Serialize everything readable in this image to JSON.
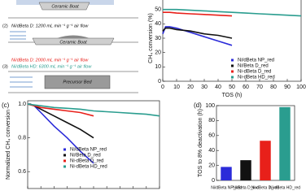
{
  "diagram": {
    "boat_1": "Ceramic Boat",
    "step_2": "(2)",
    "flow_2": "Ni/dBeta D: 1200 mL min⁻¹ g⁻¹ air flow",
    "boat_2": "Ceramic Boat",
    "flow_2b": "Ni/dBeta D: 2000 mL min⁻¹ g⁻¹ air flow",
    "step_3": "(3)",
    "flow_3": "Ni/dBeta HD: 6300 mL min⁻¹ g⁻¹ air flow",
    "bed": "Precursor Bed"
  },
  "chart_data": [
    {
      "type": "line",
      "xlabel": "TOS (h)",
      "ylabel": "CH₄ conversion (%)",
      "xlim": [
        0,
        100
      ],
      "xticks": [
        0,
        10,
        20,
        30,
        40,
        50,
        60,
        70,
        80,
        90,
        100
      ],
      "ylim": [
        0,
        60
      ],
      "yticks": [
        0,
        10,
        20,
        30,
        40,
        50
      ],
      "series": [
        {
          "name": "Ni/dBeta NP_red",
          "color": "#2b2bd9",
          "x": [
            0,
            2,
            5,
            10,
            20,
            30,
            40,
            50
          ],
          "values": [
            33,
            38,
            38,
            37,
            34,
            31,
            28,
            25
          ]
        },
        {
          "name": "Ni/Beta D_red",
          "color": "#111111",
          "x": [
            0,
            2,
            5,
            10,
            20,
            30,
            40,
            50
          ],
          "values": [
            35,
            37,
            37,
            36,
            35,
            33,
            32,
            30
          ]
        },
        {
          "name": "Ni-dBeta D_red",
          "color": "#e8201a",
          "x": [
            0,
            5,
            10,
            20,
            30,
            40,
            50
          ],
          "values": [
            48,
            48,
            47.5,
            47,
            46.5,
            46,
            45.5
          ]
        },
        {
          "name": "Ni-dBeta HD_red",
          "color": "#2a9d8f",
          "x": [
            0,
            10,
            20,
            30,
            40,
            50,
            60,
            70,
            80,
            90,
            100
          ],
          "values": [
            50,
            50,
            49.5,
            49,
            48.5,
            48,
            47.5,
            47,
            46.5,
            46,
            45.5
          ]
        }
      ]
    },
    {
      "type": "line",
      "label": "(c)",
      "ylabel": "Normalized CH₄ conversion",
      "xlim": [
        0,
        100
      ],
      "xticks": [
        0,
        10,
        20,
        30,
        40,
        50,
        60,
        70,
        80,
        90,
        100
      ],
      "ylim": [
        0.5,
        1.02
      ],
      "yticks": [
        {
          "value": 0.6,
          "label": "0.6"
        },
        {
          "value": 0.8,
          "label": "0.8"
        },
        {
          "value": 1,
          "label": "1.0"
        }
      ],
      "series": [
        {
          "name": "Ni/dBeta NP_red",
          "color": "#2b2bd9",
          "x": [
            0,
            2,
            5,
            10,
            20,
            30,
            40,
            50
          ],
          "values": [
            1,
            1,
            0.99,
            0.95,
            0.87,
            0.8,
            0.72,
            0.65
          ]
        },
        {
          "name": "Ni/Beta D_red",
          "color": "#111111",
          "x": [
            0,
            2,
            5,
            10,
            20,
            30,
            40,
            50
          ],
          "values": [
            1,
            1,
            0.99,
            0.97,
            0.93,
            0.89,
            0.85,
            0.8
          ]
        },
        {
          "name": "Ni-dBeta D_red",
          "color": "#e8201a",
          "x": [
            0,
            5,
            10,
            20,
            30,
            40,
            50
          ],
          "values": [
            1,
            0.99,
            0.98,
            0.97,
            0.96,
            0.95,
            0.93
          ]
        },
        {
          "name": "Ni-dBeta HD_red",
          "color": "#2a9d8f",
          "x": [
            0,
            10,
            20,
            30,
            40,
            50,
            60,
            70,
            80,
            90,
            100
          ],
          "values": [
            1,
            0.99,
            0.98,
            0.975,
            0.97,
            0.96,
            0.955,
            0.95,
            0.945,
            0.94,
            0.93
          ]
        }
      ]
    },
    {
      "type": "bar",
      "label": "(d)",
      "ylabel": "TOS to 8% deactivation (h)",
      "ylim": [
        0,
        100
      ],
      "yticks": [
        0,
        20,
        40,
        60,
        80,
        100
      ],
      "categories": [
        "Ni/dBeta NP_red",
        "Ni/Beta D_red",
        "Ni-dBeta D_red",
        "Ni-dBeta HD_red"
      ],
      "values": [
        18,
        27,
        53,
        98
      ],
      "colors": [
        "#2b2bd9",
        "#111111",
        "#e8201a",
        "#2a9d8f"
      ]
    }
  ]
}
